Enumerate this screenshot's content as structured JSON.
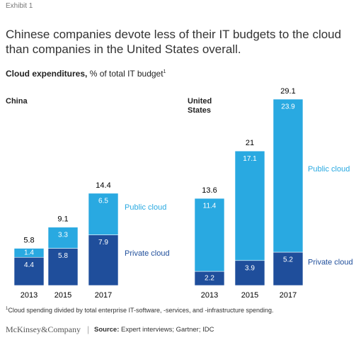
{
  "exhibit": "Exhibit 1",
  "title": "Chinese companies devote less of their IT budgets to the cloud than companies in the United States overall.",
  "subtitle_bold": "Cloud expenditures,",
  "subtitle_rest": "% of total IT budget",
  "subtitle_note": "1",
  "footnote_mark": "1",
  "footnote": "Cloud spending divided by total enterprise IT-software, -services, and -infrastructure spending.",
  "brand": "McKinsey&Company",
  "source_label": "Source:",
  "source": "Expert interviews; Gartner; IDC",
  "chart_data": [
    {
      "type": "bar",
      "stacked": true,
      "title": "China",
      "categories": [
        "2013",
        "2015",
        "2017"
      ],
      "series": [
        {
          "name": "Private cloud",
          "color": "#1f4e9b",
          "values": [
            4.4,
            5.8,
            7.9
          ]
        },
        {
          "name": "Public cloud",
          "color": "#29a9e1",
          "values": [
            1.4,
            3.3,
            6.5
          ]
        }
      ],
      "totals": [
        5.8,
        9.1,
        14.4
      ]
    },
    {
      "type": "bar",
      "stacked": true,
      "title": "United States",
      "categories": [
        "2013",
        "2015",
        "2017"
      ],
      "series": [
        {
          "name": "Private cloud",
          "color": "#1f4e9b",
          "values": [
            2.2,
            3.9,
            5.2
          ]
        },
        {
          "name": "Public cloud",
          "color": "#29a9e1",
          "values": [
            11.4,
            17.1,
            23.9
          ]
        }
      ],
      "totals": [
        13.6,
        21,
        29.1
      ]
    }
  ]
}
